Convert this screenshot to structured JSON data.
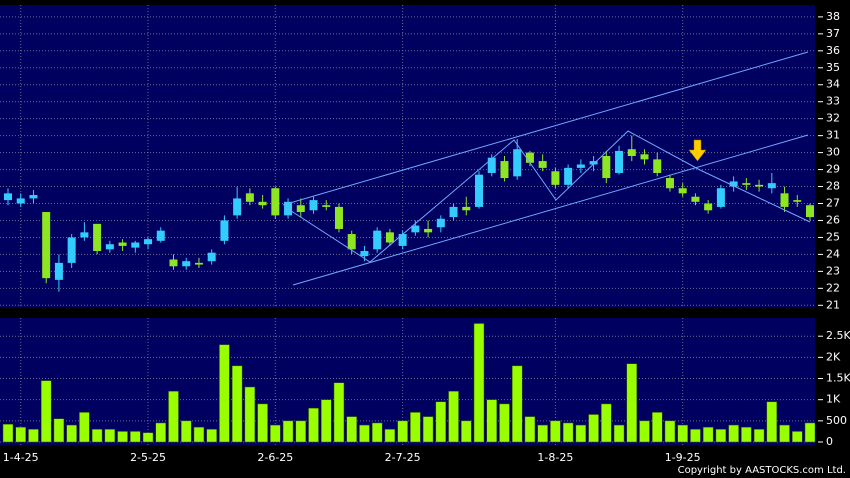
{
  "chart_data": {
    "type": "candlestick",
    "categories": [
      null,
      "1-4-25",
      null,
      null,
      null,
      null,
      null,
      null,
      null,
      null,
      null,
      "2-5-25",
      null,
      null,
      null,
      null,
      null,
      null,
      null,
      null,
      null,
      "2-6-25",
      null,
      null,
      null,
      null,
      null,
      null,
      null,
      null,
      null,
      "2-7-25",
      null,
      null,
      null,
      null,
      null,
      null,
      null,
      null,
      null,
      null,
      null,
      "1-8-25",
      null,
      null,
      null,
      null,
      null,
      null,
      null,
      null,
      null,
      "1-9-25",
      null,
      null,
      null,
      null,
      null,
      null,
      null,
      null,
      null,
      null
    ],
    "open": [
      27.2,
      27.0,
      27.3,
      26.5,
      22.5,
      23.5,
      25.0,
      25.8,
      24.3,
      24.7,
      24.4,
      24.6,
      24.8,
      23.7,
      23.3,
      23.5,
      23.6,
      24.8,
      26.3,
      27.6,
      27.1,
      27.9,
      26.3,
      26.9,
      26.6,
      26.9,
      26.8,
      25.2,
      23.9,
      24.3,
      25.3,
      24.5,
      25.3,
      25.5,
      25.6,
      26.2,
      26.8,
      26.8,
      28.8,
      29.5,
      28.6,
      30.0,
      29.5,
      28.9,
      28.1,
      29.1,
      29.3,
      29.8,
      28.8,
      30.2,
      29.9,
      29.6,
      28.5,
      27.9,
      27.4,
      27.0,
      26.8,
      28.0,
      28.2,
      28.1,
      27.9,
      27.6,
      27.2,
      26.9
    ],
    "high": [
      27.9,
      27.6,
      27.8,
      26.5,
      24.0,
      25.2,
      25.9,
      25.8,
      24.8,
      24.9,
      24.8,
      25.0,
      25.6,
      24.0,
      23.8,
      23.8,
      24.3,
      26.3,
      28.0,
      27.9,
      27.5,
      28.0,
      27.3,
      27.3,
      27.4,
      27.2,
      27.0,
      25.4,
      24.5,
      25.6,
      25.5,
      25.4,
      26.0,
      26.0,
      26.3,
      27.0,
      27.4,
      28.9,
      29.9,
      29.8,
      30.8,
      30.1,
      29.9,
      29.1,
      29.3,
      29.6,
      29.8,
      30.1,
      30.4,
      31.0,
      30.2,
      30.0,
      28.7,
      28.2,
      27.6,
      27.2,
      28.1,
      28.6,
      28.5,
      28.4,
      28.8,
      28.0,
      27.5,
      27.0
    ],
    "low": [
      26.9,
      26.8,
      27.0,
      22.3,
      21.8,
      23.2,
      24.8,
      24.0,
      24.1,
      24.2,
      24.1,
      24.3,
      24.7,
      23.1,
      23.1,
      23.2,
      23.4,
      24.6,
      26.1,
      26.9,
      26.7,
      26.1,
      26.1,
      26.2,
      26.4,
      26.6,
      25.3,
      24.0,
      23.6,
      24.1,
      24.5,
      24.3,
      25.1,
      25.0,
      25.3,
      26.0,
      26.3,
      26.7,
      28.6,
      28.3,
      28.4,
      29.2,
      28.9,
      27.9,
      27.9,
      28.8,
      28.9,
      28.2,
      28.7,
      29.5,
      29.3,
      28.6,
      27.7,
      27.4,
      26.9,
      26.4,
      26.7,
      27.7,
      27.8,
      27.7,
      27.6,
      26.5,
      26.8,
      26.0
    ],
    "close": [
      27.6,
      27.3,
      27.5,
      22.6,
      23.5,
      25.0,
      25.3,
      24.2,
      24.6,
      24.5,
      24.7,
      24.9,
      25.4,
      23.3,
      23.6,
      23.4,
      24.1,
      26.0,
      27.3,
      27.1,
      26.9,
      26.3,
      27.1,
      26.5,
      27.2,
      26.8,
      25.5,
      24.3,
      24.2,
      25.4,
      24.7,
      25.2,
      25.7,
      25.3,
      26.1,
      26.8,
      26.6,
      28.7,
      29.7,
      28.5,
      30.2,
      29.4,
      29.1,
      28.1,
      29.1,
      29.3,
      29.5,
      28.5,
      30.1,
      29.8,
      29.6,
      28.8,
      27.9,
      27.6,
      27.1,
      26.6,
      27.9,
      28.3,
      28.1,
      28.0,
      28.2,
      26.8,
      27.1,
      26.2
    ],
    "volume": [
      420,
      350,
      300,
      1450,
      550,
      400,
      700,
      300,
      300,
      250,
      250,
      220,
      450,
      1200,
      500,
      350,
      300,
      2300,
      1800,
      1300,
      900,
      400,
      500,
      500,
      800,
      1000,
      1400,
      600,
      400,
      450,
      300,
      500,
      700,
      600,
      950,
      1200,
      500,
      2800,
      1000,
      900,
      1800,
      600,
      400,
      500,
      450,
      400,
      650,
      900,
      400,
      1850,
      500,
      700,
      500,
      400,
      300,
      350,
      300,
      400,
      350,
      300,
      950,
      400,
      250,
      450
    ],
    "up_color": "#33ccff",
    "down_color": "#8ee622",
    "volume_color": "#99ff00",
    "ylim": [
      20.9,
      38.7
    ],
    "yticks": [
      21,
      22,
      23,
      24,
      25,
      26,
      27,
      28,
      29,
      30,
      31,
      32,
      33,
      34,
      35,
      36,
      37,
      38
    ],
    "volume_ylim": [
      0,
      2930
    ],
    "volume_yticks": [
      0,
      500,
      {
        "value": 1000,
        "label": "1K"
      },
      {
        "value": 1500,
        "label": "1.5K"
      },
      {
        "value": 2000,
        "label": "2K"
      },
      {
        "value": 2500,
        "label": "2.5K"
      }
    ],
    "grid": true,
    "copyright": "Copyright by AASTOCKS.com Ltd."
  }
}
